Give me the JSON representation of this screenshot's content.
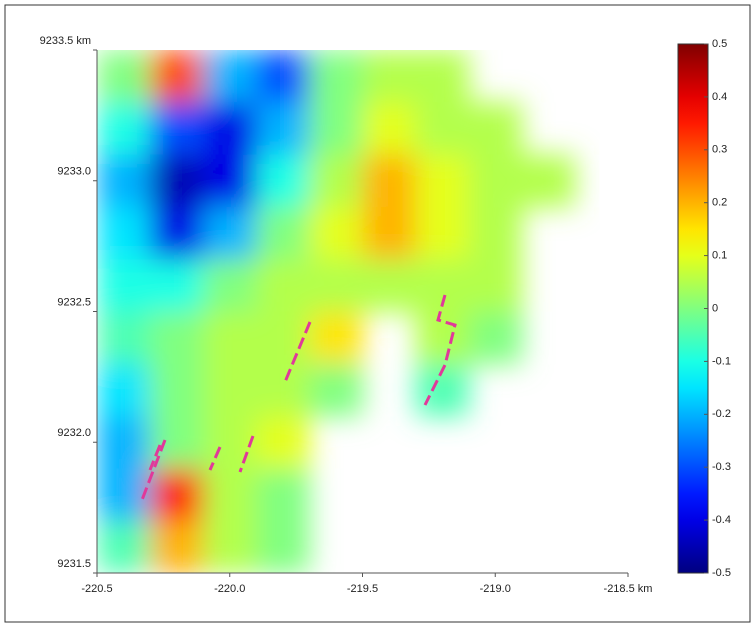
{
  "chart_data": {
    "type": "heatmap",
    "x": [
      -220.4,
      -220.2,
      -220.0,
      -219.8,
      -219.6,
      -219.4,
      -219.2,
      -219.0,
      -218.8,
      -218.6
    ],
    "y": [
      9233.4,
      9233.2,
      9233.0,
      9232.8,
      9232.6,
      9232.4,
      9232.2,
      9232.0,
      9231.8,
      9231.6
    ],
    "z": [
      [
        0.0,
        0.3,
        -0.2,
        -0.3,
        0.0,
        0.05,
        0.05,
        null,
        null,
        null
      ],
      [
        -0.1,
        -0.3,
        -0.4,
        -0.2,
        0.0,
        0.1,
        0.05,
        0.05,
        null,
        null
      ],
      [
        -0.2,
        -0.45,
        -0.4,
        -0.1,
        0.05,
        0.2,
        0.1,
        0.05,
        0.05,
        null
      ],
      [
        -0.15,
        -0.4,
        -0.2,
        0.0,
        0.1,
        0.2,
        0.1,
        0.05,
        null,
        null
      ],
      [
        -0.1,
        -0.1,
        0.0,
        0.05,
        0.05,
        0.05,
        0.05,
        0.05,
        null,
        null
      ],
      [
        -0.05,
        0.0,
        0.05,
        0.05,
        0.15,
        null,
        0.05,
        0.0,
        null,
        null
      ],
      [
        -0.15,
        0.0,
        0.05,
        0.05,
        0.0,
        null,
        -0.05,
        null,
        null,
        null
      ],
      [
        -0.2,
        0.0,
        0.05,
        0.1,
        null,
        null,
        null,
        null,
        null,
        null
      ],
      [
        -0.2,
        0.35,
        0.05,
        0.0,
        null,
        null,
        null,
        null,
        null,
        null
      ],
      [
        -0.05,
        0.2,
        0.05,
        0.0,
        null,
        null,
        null,
        null,
        null,
        null
      ]
    ],
    "xlim": [
      -220.5,
      -218.5
    ],
    "ylim": [
      9231.5,
      9233.5
    ],
    "xticks": [
      {
        "value": -220.5,
        "label": "-220.5"
      },
      {
        "value": -220.0,
        "label": "-220.0"
      },
      {
        "value": -219.5,
        "label": "-219.5"
      },
      {
        "value": -219.0,
        "label": "-219.0"
      },
      {
        "value": -218.5,
        "label": "-218.5 km"
      }
    ],
    "yticks": [
      {
        "value": 9233.5,
        "label": "9233.5 km"
      },
      {
        "value": 9233.0,
        "label": "9233.0"
      },
      {
        "value": 9232.5,
        "label": "9232.5"
      },
      {
        "value": 9232.0,
        "label": "9232.0"
      },
      {
        "value": 9231.5,
        "label": "9231.5"
      }
    ],
    "clim": [
      -0.5,
      0.5
    ],
    "cticks": [
      0.5,
      0.4,
      0.3,
      0.2,
      0.1,
      0,
      -0.1,
      -0.2,
      -0.3,
      -0.4,
      -0.5
    ],
    "colormap": "jet"
  }
}
